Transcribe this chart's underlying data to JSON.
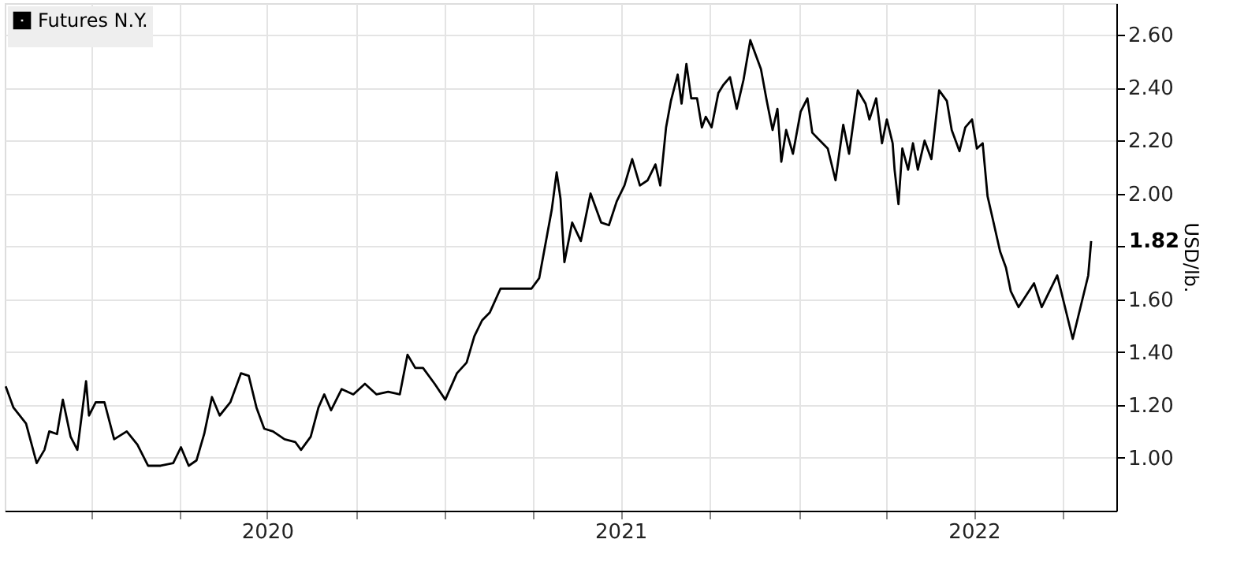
{
  "chart_data": {
    "type": "line",
    "ylabel": "USD/lb.",
    "legend": "top left",
    "grid": true,
    "marker": "none",
    "line_style": "solid",
    "xlim": [
      "2019-10-04",
      "2022-11-25"
    ],
    "xticks": [
      {
        "value": "2020-01-01",
        "label": null
      },
      {
        "value": "2020-04-01",
        "label": null
      },
      {
        "value": "2020-07-01",
        "label": "2020"
      },
      {
        "value": "2020-10-01",
        "label": null
      },
      {
        "value": "2021-01-01",
        "label": null
      },
      {
        "value": "2021-04-01",
        "label": null
      },
      {
        "value": "2021-07-01",
        "label": "2021"
      },
      {
        "value": "2021-10-01",
        "label": null
      },
      {
        "value": "2022-01-01",
        "label": null
      },
      {
        "value": "2022-04-01",
        "label": null
      },
      {
        "value": "2022-07-01",
        "label": "2022"
      },
      {
        "value": "2022-10-01",
        "label": null
      }
    ],
    "ylim": [
      0.8,
      2.72
    ],
    "yticks": [
      {
        "value": 1,
        "label": "1.00"
      },
      {
        "value": 1.2,
        "label": "1.20"
      },
      {
        "value": 1.4,
        "label": "1.40"
      },
      {
        "value": 1.6,
        "label": "1.60"
      },
      {
        "value": 1.8,
        "label": null
      },
      {
        "value": 2,
        "label": "2.00"
      },
      {
        "value": 2.2,
        "label": "2.20"
      },
      {
        "value": 2.4,
        "label": "2.40"
      },
      {
        "value": 2.6,
        "label": "2.60"
      }
    ],
    "annotations": [
      {
        "text": "1.82",
        "x": "2022-10-30",
        "y": 1.82
      }
    ],
    "x": [
      "2019-10-05",
      "2019-10-13",
      "2019-10-26",
      "2019-11-06",
      "2019-11-14",
      "2019-11-19",
      "2019-11-27",
      "2019-12-03",
      "2019-12-11",
      "2019-12-18",
      "2019-12-27",
      "2019-12-30",
      "2020-01-06",
      "2020-01-15",
      "2020-01-25",
      "2020-02-07",
      "2020-02-18",
      "2020-02-29",
      "2020-03-13",
      "2020-03-26",
      "2020-04-03",
      "2020-04-11",
      "2020-04-19",
      "2020-04-27",
      "2020-05-05",
      "2020-05-13",
      "2020-05-24",
      "2020-06-04",
      "2020-06-12",
      "2020-06-20",
      "2020-06-28",
      "2020-07-07",
      "2020-07-19",
      "2020-07-30",
      "2020-08-05",
      "2020-08-15",
      "2020-08-23",
      "2020-08-29",
      "2020-09-05",
      "2020-09-16",
      "2020-09-28",
      "2020-10-10",
      "2020-10-22",
      "2020-11-03",
      "2020-11-15",
      "2020-11-23",
      "2020-12-01",
      "2020-12-09",
      "2020-12-21",
      "2021-01-01",
      "2021-01-13",
      "2021-01-23",
      "2021-01-31",
      "2021-02-08",
      "2021-02-16",
      "2021-02-27",
      "2021-03-31",
      "2021-04-08",
      "2021-04-21",
      "2021-04-26",
      "2021-04-30",
      "2021-05-04",
      "2021-05-12",
      "2021-05-21",
      "2021-05-31",
      "2021-06-11",
      "2021-06-19",
      "2021-06-27",
      "2021-07-05",
      "2021-07-13",
      "2021-07-21",
      "2021-07-29",
      "2021-08-06",
      "2021-08-11",
      "2021-08-17",
      "2021-08-22",
      "2021-08-29",
      "2021-09-02",
      "2021-09-07",
      "2021-09-12",
      "2021-09-18",
      "2021-09-23",
      "2021-09-27",
      "2021-10-03",
      "2021-10-10",
      "2021-10-15",
      "2021-10-22",
      "2021-10-29",
      "2021-11-05",
      "2021-11-12",
      "2021-11-18",
      "2021-11-23",
      "2021-11-29",
      "2021-12-05",
      "2021-12-10",
      "2021-12-14",
      "2021-12-19",
      "2021-12-26",
      "2022-01-03",
      "2022-01-10",
      "2022-01-15",
      "2022-01-23",
      "2022-01-31",
      "2022-02-08",
      "2022-02-16",
      "2022-02-22",
      "2022-03-03",
      "2022-03-11",
      "2022-03-15",
      "2022-03-22",
      "2022-03-28",
      "2022-04-02",
      "2022-04-08",
      "2022-04-10",
      "2022-04-14",
      "2022-04-18",
      "2022-04-24",
      "2022-04-29",
      "2022-05-04",
      "2022-05-11",
      "2022-05-18",
      "2022-05-26",
      "2022-06-03",
      "2022-06-08",
      "2022-06-16",
      "2022-06-22",
      "2022-06-29",
      "2022-07-04",
      "2022-07-10",
      "2022-07-15",
      "2022-07-20",
      "2022-07-28",
      "2022-08-03",
      "2022-08-08",
      "2022-08-16",
      "2022-09-01",
      "2022-09-09",
      "2022-09-25",
      "2022-10-03",
      "2022-10-11",
      "2022-10-19",
      "2022-10-27",
      "2022-10-30"
    ],
    "series": [
      {
        "name": "Futures N.Y.",
        "color": "#000000",
        "values": [
          1.27,
          1.19,
          1.13,
          0.98,
          1.03,
          1.1,
          1.09,
          1.22,
          1.08,
          1.03,
          1.29,
          1.16,
          1.21,
          1.21,
          1.07,
          1.1,
          1.05,
          0.97,
          0.97,
          0.98,
          1.04,
          0.97,
          0.99,
          1.09,
          1.23,
          1.16,
          1.21,
          1.32,
          1.31,
          1.19,
          1.11,
          1.1,
          1.07,
          1.06,
          1.03,
          1.08,
          1.19,
          1.24,
          1.18,
          1.26,
          1.24,
          1.28,
          1.24,
          1.25,
          1.24,
          1.39,
          1.34,
          1.34,
          1.28,
          1.22,
          1.32,
          1.36,
          1.46,
          1.52,
          1.55,
          1.64,
          1.64,
          1.68,
          1.94,
          2.08,
          1.98,
          1.74,
          1.89,
          1.82,
          2.0,
          1.89,
          1.88,
          1.97,
          2.03,
          2.13,
          2.03,
          2.05,
          2.11,
          2.03,
          2.25,
          2.35,
          2.45,
          2.34,
          2.49,
          2.36,
          2.36,
          2.25,
          2.29,
          2.25,
          2.38,
          2.41,
          2.44,
          2.32,
          2.43,
          2.58,
          2.52,
          2.47,
          2.35,
          2.24,
          2.32,
          2.12,
          2.24,
          2.15,
          2.31,
          2.36,
          2.23,
          2.2,
          2.17,
          2.05,
          2.26,
          2.15,
          2.39,
          2.34,
          2.28,
          2.36,
          2.19,
          2.28,
          2.19,
          2.09,
          1.96,
          2.17,
          2.09,
          2.19,
          2.09,
          2.2,
          2.13,
          2.39,
          2.35,
          2.24,
          2.16,
          2.25,
          2.28,
          2.17,
          2.19,
          1.99,
          1.91,
          1.78,
          1.72,
          1.63,
          1.57,
          1.66,
          1.57,
          1.69,
          1.57,
          1.45,
          1.57,
          1.69,
          1.82
        ]
      }
    ]
  }
}
